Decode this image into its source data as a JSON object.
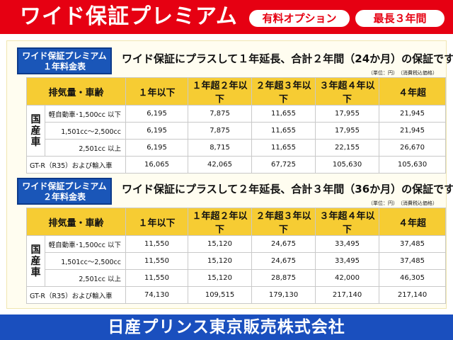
{
  "header": {
    "title": "ワイド保証プレミアム",
    "badge_option": "有料オプション",
    "badge_max": "最長３年間"
  },
  "columns": {
    "row_header": "排気量・車齢",
    "col1": "１年以下",
    "col2": "１年超２年以下",
    "col3": "２年超３年以下",
    "col4": "３年超４年以下",
    "col5": "４年超"
  },
  "row_labels": {
    "domestic": "国\n産\n車",
    "kei": "軽自動車･1,500cc 以下",
    "mid": "1,501cc～2,500cc",
    "large": "2,501cc 以上",
    "gtr": "GT-R（R35）および輸入車"
  },
  "section1": {
    "label_line1": "ワイド保証プレミアム",
    "label_line2": "１年料金表",
    "title": "ワイド保証にプラスして１年延長、合計２年間（24か月）の保証です。",
    "note": "（単位：円）　（消費税込価格）",
    "rows": {
      "kei": [
        "6,195",
        "7,875",
        "11,655",
        "17,955",
        "21,945"
      ],
      "mid": [
        "6,195",
        "7,875",
        "11,655",
        "17,955",
        "21,945"
      ],
      "large": [
        "6,195",
        "8,715",
        "11,655",
        "22,155",
        "26,670"
      ],
      "gtr": [
        "16,065",
        "42,065",
        "67,725",
        "105,630",
        "105,630"
      ]
    }
  },
  "section2": {
    "label_line1": "ワイド保証プレミアム",
    "label_line2": "２年料金表",
    "title": "ワイド保証にプラスして２年延長、合計３年間（36か月）の保証です。",
    "note": "（単位：円）　（消費税込価格）",
    "rows": {
      "kei": [
        "11,550",
        "15,120",
        "24,675",
        "33,495",
        "37,485"
      ],
      "mid": [
        "11,550",
        "15,120",
        "24,675",
        "33,495",
        "37,485"
      ],
      "large": [
        "11,550",
        "15,120",
        "28,875",
        "42,000",
        "46,305"
      ],
      "gtr": [
        "74,130",
        "109,515",
        "179,130",
        "217,140",
        "217,140"
      ]
    }
  },
  "footer": {
    "company": "日産プリンス東京販売株式会社"
  },
  "colors": {
    "header_red": "#e60012",
    "label_blue": "#1a56b8",
    "table_header_yellow": "#f6cc33",
    "footer_blue": "#1a4fbe"
  }
}
